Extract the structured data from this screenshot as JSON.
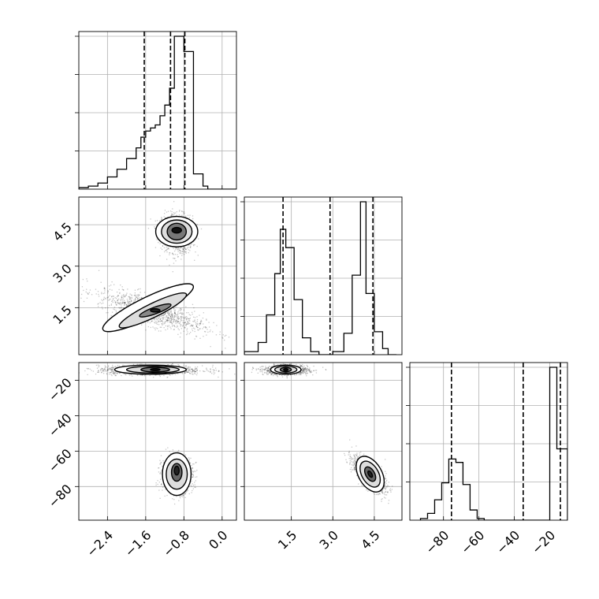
{
  "chart_data": {
    "type": "corner",
    "grid": true,
    "params": [
      {
        "ticks": [
          "−2.4",
          "−1.6",
          "−0.8",
          "0.0"
        ],
        "tick_values": [
          -2.4,
          -1.6,
          -0.8,
          0.0
        ],
        "range": [
          -3.0,
          0.3
        ],
        "quantiles": [
          -1.63,
          -1.08,
          -0.78
        ],
        "hist": {
          "edges": [
            -3.0,
            -2.8,
            -2.6,
            -2.4,
            -2.2,
            -2.0,
            -1.8,
            -1.7,
            -1.6,
            -1.5,
            -1.4,
            -1.3,
            -1.2,
            -1.1,
            -1.0,
            -0.8,
            -0.6,
            -0.4,
            -0.3,
            0.3
          ],
          "counts": [
            0.01,
            0.02,
            0.04,
            0.08,
            0.13,
            0.2,
            0.27,
            0.34,
            0.38,
            0.4,
            0.42,
            0.48,
            0.55,
            0.66,
            1.0,
            0.9,
            0.1,
            0.02,
            0.0
          ]
        }
      },
      {
        "ticks": [
          "1.5",
          "3.0",
          "4.5"
        ],
        "tick_values": [
          1.5,
          3.0,
          4.5
        ],
        "range": [
          -0.2,
          5.5
        ],
        "quantiles": [
          1.2,
          2.9,
          4.45
        ],
        "hist": {
          "edges": [
            -0.2,
            0.3,
            0.6,
            0.9,
            1.1,
            1.3,
            1.6,
            1.9,
            2.2,
            2.5,
            3.0,
            3.4,
            3.7,
            4.0,
            4.2,
            4.5,
            4.8,
            5.0,
            5.3
          ],
          "counts": [
            0.02,
            0.08,
            0.26,
            0.53,
            0.82,
            0.7,
            0.36,
            0.11,
            0.02,
            0.0,
            0.02,
            0.14,
            0.52,
            1.0,
            0.4,
            0.15,
            0.04,
            0.0
          ]
        }
      },
      {
        "ticks": [
          "−80",
          "−60",
          "−40",
          "−20"
        ],
        "tick_values": [
          -80,
          -60,
          -40,
          -20
        ],
        "range": [
          -99,
          -10
        ],
        "quantiles": [
          -75.5,
          -35,
          -14
        ],
        "hist": {
          "edges": [
            -93,
            -89,
            -85,
            -81,
            -77,
            -73,
            -69,
            -65,
            -61,
            -57,
            -20,
            -16,
            -12,
            -10
          ],
          "counts": [
            0.01,
            0.04,
            0.12,
            0.22,
            0.36,
            0.34,
            0.21,
            0.06,
            0.01,
            0.0,
            0.9,
            0.42,
            0.42
          ]
        }
      }
    ],
    "pairs": [
      {
        "row": 1,
        "col": 0,
        "clusters": [
          {
            "cx": -0.95,
            "cy": 4.2,
            "sx": 0.16,
            "sy": 0.35,
            "rho": -0.1
          },
          {
            "cx": -1.5,
            "cy": 1.4,
            "sx": 0.55,
            "sy": 0.38,
            "rho": -0.75
          }
        ],
        "contours": [
          {
            "cx": -0.95,
            "cy": 4.25,
            "rx": 0.44,
            "ry": 0.55,
            "rot": 0,
            "fill": "#ffffff"
          },
          {
            "cx": -0.95,
            "cy": 4.25,
            "rx": 0.32,
            "ry": 0.42,
            "rot": 0,
            "fill": "#dddddd"
          },
          {
            "cx": -0.95,
            "cy": 4.25,
            "rx": 0.2,
            "ry": 0.3,
            "rot": 0,
            "fill": "#777777"
          },
          {
            "cx": -0.95,
            "cy": 4.3,
            "rx": 0.1,
            "ry": 0.1,
            "rot": 0,
            "fill": "#111111"
          },
          {
            "cx": -1.55,
            "cy": 1.5,
            "rx": 1.05,
            "ry": 0.38,
            "rot": -26,
            "fill": "#ffffff"
          },
          {
            "cx": -1.45,
            "cy": 1.4,
            "rx": 0.78,
            "ry": 0.25,
            "rot": -26,
            "fill": "#dddddd"
          },
          {
            "cx": -1.4,
            "cy": 1.4,
            "rx": 0.35,
            "ry": 0.12,
            "rot": -20,
            "fill": "#888888"
          },
          {
            "cx": -1.4,
            "cy": 1.4,
            "rx": 0.1,
            "ry": 0.06,
            "rot": 0,
            "fill": "#222222"
          }
        ]
      },
      {
        "row": 2,
        "col": 0,
        "clusters": [
          {
            "cx": -1.5,
            "cy": -14,
            "sx": 0.55,
            "sy": 1.3,
            "rho": 0
          },
          {
            "cx": -0.95,
            "cy": -73,
            "sx": 0.16,
            "sy": 5,
            "rho": 0
          }
        ],
        "contours": [
          {
            "cx": -1.5,
            "cy": -14,
            "rx": 0.75,
            "ry": 2.6,
            "rot": 0,
            "fill": "#ffffff"
          },
          {
            "cx": -1.45,
            "cy": -14,
            "rx": 0.55,
            "ry": 1.9,
            "rot": 0,
            "fill": "#dddddd"
          },
          {
            "cx": -1.4,
            "cy": -14,
            "rx": 0.3,
            "ry": 1.3,
            "rot": 0,
            "fill": "#777777"
          },
          {
            "cx": -1.4,
            "cy": -14,
            "rx": 0.1,
            "ry": 0.6,
            "rot": 0,
            "fill": "#111111"
          },
          {
            "cx": -0.95,
            "cy": -73,
            "rx": 0.3,
            "ry": 12,
            "rot": 0,
            "fill": "#ffffff"
          },
          {
            "cx": -0.95,
            "cy": -73,
            "rx": 0.22,
            "ry": 8.5,
            "rot": 0,
            "fill": "#dddddd"
          },
          {
            "cx": -0.95,
            "cy": -72,
            "rx": 0.11,
            "ry": 5,
            "rot": 0,
            "fill": "#666666"
          },
          {
            "cx": -0.95,
            "cy": -71,
            "rx": 0.05,
            "ry": 2.5,
            "rot": 0,
            "fill": "#222222"
          }
        ]
      },
      {
        "row": 2,
        "col": 1,
        "clusters": [
          {
            "cx": 1.3,
            "cy": -14,
            "sx": 0.4,
            "sy": 1.3,
            "rho": 0
          },
          {
            "cx": 4.3,
            "cy": -73,
            "sx": 0.3,
            "sy": 5,
            "rho": -0.7
          }
        ],
        "contours": [
          {
            "cx": 1.3,
            "cy": -14,
            "rx": 0.55,
            "ry": 2.6,
            "rot": 0,
            "fill": "#ffffff"
          },
          {
            "cx": 1.3,
            "cy": -14,
            "rx": 0.4,
            "ry": 1.9,
            "rot": 0,
            "fill": "#dddddd"
          },
          {
            "cx": 1.3,
            "cy": -14,
            "rx": 0.2,
            "ry": 1.2,
            "rot": 0,
            "fill": "#777777"
          },
          {
            "cx": 1.3,
            "cy": -14,
            "rx": 0.08,
            "ry": 0.6,
            "rot": 0,
            "fill": "#111111"
          },
          {
            "cx": 4.35,
            "cy": -73,
            "rx": 0.42,
            "ry": 11,
            "rot": -30,
            "fill": "#ffffff"
          },
          {
            "cx": 4.35,
            "cy": -73,
            "rx": 0.3,
            "ry": 8,
            "rot": -30,
            "fill": "#dddddd"
          },
          {
            "cx": 4.35,
            "cy": -73,
            "rx": 0.16,
            "ry": 4.5,
            "rot": -30,
            "fill": "#666666"
          },
          {
            "cx": 4.35,
            "cy": -73,
            "rx": 0.06,
            "ry": 2,
            "rot": -30,
            "fill": "#222222"
          }
        ]
      }
    ]
  }
}
